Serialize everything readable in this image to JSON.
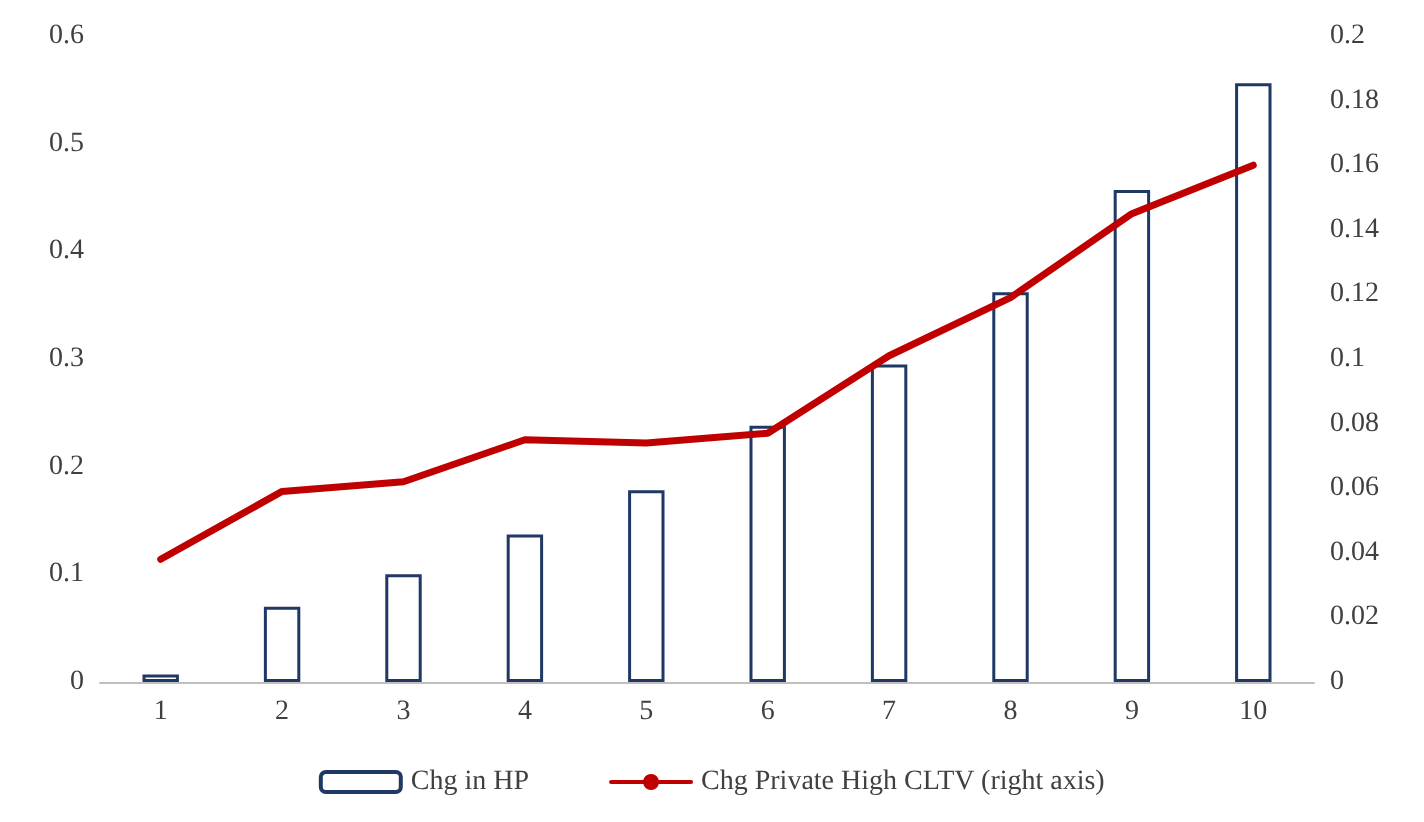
{
  "chart_data": {
    "type": "bar",
    "categories": [
      "1",
      "2",
      "3",
      "4",
      "5",
      "6",
      "7",
      "8",
      "9",
      "10"
    ],
    "series": [
      {
        "name": "Chg in HP",
        "color": "#1f3864",
        "values": [
          0.007,
          0.07,
          0.1,
          0.137,
          0.178,
          0.238,
          0.295,
          0.362,
          0.457,
          0.556
        ]
      },
      {
        "name": "Chg Private High CLTV (right axis)",
        "type": "line",
        "axis": "y2",
        "color": "#c00000",
        "values": [
          0.038,
          0.059,
          0.062,
          0.075,
          0.074,
          0.077,
          0.101,
          0.119,
          0.145,
          0.16
        ]
      }
    ],
    "ylim": [
      0,
      0.6
    ],
    "yticks": [
      0,
      0.1,
      0.2,
      0.3,
      0.4,
      0.5,
      0.6
    ],
    "y2lim": [
      0,
      0.2
    ],
    "y2ticks": [
      0,
      0.02,
      0.04,
      0.06,
      0.08,
      0.1,
      0.12,
      0.14,
      0.16,
      0.18,
      0.2
    ],
    "grid": false,
    "legend": "bottom",
    "marker": "none",
    "line_style": "solid"
  }
}
